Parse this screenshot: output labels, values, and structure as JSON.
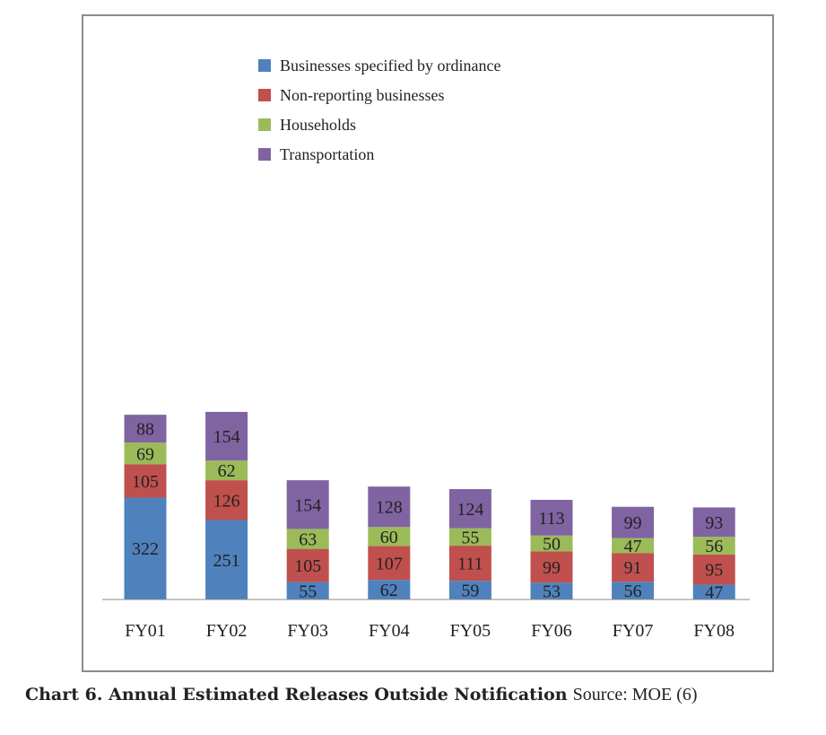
{
  "chart_data": {
    "type": "bar",
    "stacked": true,
    "categories": [
      "FY01",
      "FY02",
      "FY03",
      "FY04",
      "FY05",
      "FY06",
      "FY07",
      "FY08"
    ],
    "series": [
      {
        "name": "Businesses specified by ordinance",
        "color": "#4f81bd",
        "values": [
          322,
          251,
          55,
          62,
          59,
          53,
          56,
          47
        ]
      },
      {
        "name": "Non-reporting businesses",
        "color": "#c0504d",
        "values": [
          105,
          126,
          105,
          107,
          111,
          99,
          91,
          95
        ]
      },
      {
        "name": "Households",
        "color": "#9bbb59",
        "values": [
          69,
          62,
          63,
          60,
          55,
          50,
          47,
          56
        ]
      },
      {
        "name": "Transportation",
        "color": "#8064a2",
        "values": [
          88,
          154,
          154,
          128,
          124,
          113,
          99,
          93
        ]
      }
    ],
    "legend_position": "top-center",
    "grid": false
  },
  "caption": {
    "title": "Chart 6. Annual Estimated Releases Outside Notification",
    "source": "Source: MOE (6)"
  }
}
